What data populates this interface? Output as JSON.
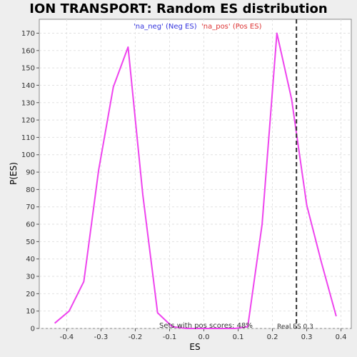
{
  "chart_data": {
    "type": "line",
    "title": "ION TRANSPORT: Random ES distribution",
    "xlabel": "ES",
    "ylabel": "P(ES)",
    "xlim": [
      -0.48,
      0.43
    ],
    "ylim": [
      0,
      178
    ],
    "x_ticks": [
      -0.4,
      -0.3,
      -0.2,
      -0.1,
      0.0,
      0.1,
      0.2,
      0.3,
      0.4
    ],
    "x_tick_labels": [
      "-0.4",
      "-0.3",
      "-0.2",
      "-0.1",
      "0.0",
      "0.1",
      "0.2",
      "0.3",
      "0.4"
    ],
    "y_ticks": [
      0,
      10,
      20,
      30,
      40,
      50,
      60,
      70,
      80,
      90,
      100,
      110,
      120,
      130,
      140,
      150,
      160,
      170
    ],
    "y_tick_labels": [
      "0",
      "10",
      "20",
      "30",
      "40",
      "50",
      "60",
      "70",
      "80",
      "90",
      "100",
      "110",
      "120",
      "130",
      "140",
      "150",
      "160",
      "170"
    ],
    "grid": true,
    "series": [
      {
        "name": "",
        "color": "#ee44ee",
        "x": [
          -0.435,
          -0.393,
          -0.35,
          -0.307,
          -0.264,
          -0.221,
          -0.178,
          -0.135,
          -0.092,
          -0.05,
          0.0,
          0.05,
          0.09,
          0.128,
          0.17,
          0.213,
          0.256,
          0.3,
          0.343,
          0.386
        ],
        "y": [
          3,
          10,
          27,
          91,
          139,
          162,
          77,
          9,
          1,
          0,
          0,
          0,
          0,
          1,
          60,
          170,
          132,
          71,
          38,
          7
        ]
      }
    ],
    "legend": [
      {
        "label": "'na_neg' (Neg ES)",
        "color": "#3333dd"
      },
      {
        "label": "'na_pos' (Pos ES)",
        "color": "#dd3333"
      }
    ],
    "real_es": 0.27,
    "real_es_label": "Real ES 0.3",
    "pos_scores_label": "Sets with pos scores: 48%"
  }
}
